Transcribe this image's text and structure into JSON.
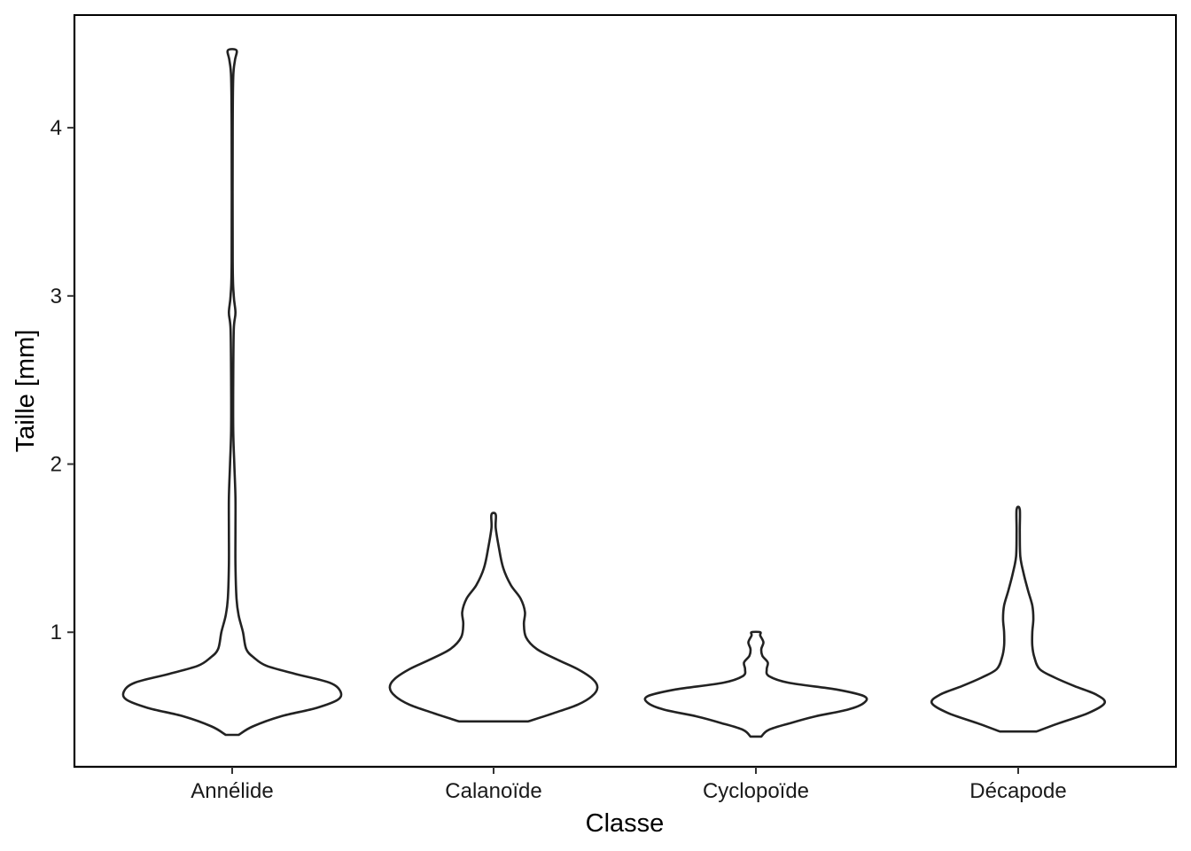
{
  "chart_data": {
    "type": "violin",
    "title": "",
    "xlabel": "Classe",
    "ylabel": "Taille  [mm]",
    "ylim": [
      0.2,
      4.67
    ],
    "yticks": [
      1,
      2,
      3,
      4
    ],
    "grid": false,
    "legend": "none",
    "categories": [
      "Annélide",
      "Calanoïde",
      "Cyclopoïde",
      "Décapode"
    ],
    "series": [
      {
        "category": "Annélide",
        "min": 0.39,
        "max": 4.46,
        "density": [
          [
            0.39,
            0.06
          ],
          [
            0.44,
            0.19
          ],
          [
            0.5,
            0.45
          ],
          [
            0.55,
            0.78
          ],
          [
            0.6,
            0.98
          ],
          [
            0.65,
            1.0
          ],
          [
            0.7,
            0.9
          ],
          [
            0.75,
            0.6
          ],
          [
            0.8,
            0.32
          ],
          [
            0.85,
            0.2
          ],
          [
            0.9,
            0.13
          ],
          [
            1.0,
            0.1
          ],
          [
            1.1,
            0.06
          ],
          [
            1.2,
            0.04
          ],
          [
            1.4,
            0.03
          ],
          [
            1.6,
            0.03
          ],
          [
            1.8,
            0.03
          ],
          [
            2.0,
            0.02
          ],
          [
            2.2,
            0.01
          ],
          [
            2.5,
            0.01
          ],
          [
            2.8,
            0.015
          ],
          [
            2.9,
            0.03
          ],
          [
            3.0,
            0.015
          ],
          [
            3.2,
            0.005
          ],
          [
            4.0,
            0.005
          ],
          [
            4.3,
            0.01
          ],
          [
            4.4,
            0.025
          ],
          [
            4.46,
            0.04
          ]
        ]
      },
      {
        "category": "Calanoïde",
        "min": 0.47,
        "max": 1.7,
        "density": [
          [
            0.47,
            0.32
          ],
          [
            0.52,
            0.56
          ],
          [
            0.57,
            0.78
          ],
          [
            0.62,
            0.91
          ],
          [
            0.67,
            0.96
          ],
          [
            0.72,
            0.92
          ],
          [
            0.78,
            0.78
          ],
          [
            0.84,
            0.58
          ],
          [
            0.9,
            0.4
          ],
          [
            0.97,
            0.3
          ],
          [
            1.05,
            0.28
          ],
          [
            1.12,
            0.29
          ],
          [
            1.2,
            0.25
          ],
          [
            1.28,
            0.16
          ],
          [
            1.38,
            0.09
          ],
          [
            1.5,
            0.05
          ],
          [
            1.62,
            0.02
          ],
          [
            1.7,
            0.02
          ]
        ]
      },
      {
        "category": "Cyclopoïde",
        "min": 0.38,
        "max": 1.0,
        "density": [
          [
            0.38,
            0.05
          ],
          [
            0.42,
            0.12
          ],
          [
            0.46,
            0.32
          ],
          [
            0.5,
            0.55
          ],
          [
            0.54,
            0.85
          ],
          [
            0.58,
            1.0
          ],
          [
            0.62,
            1.0
          ],
          [
            0.66,
            0.74
          ],
          [
            0.7,
            0.3
          ],
          [
            0.74,
            0.12
          ],
          [
            0.78,
            0.1
          ],
          [
            0.82,
            0.11
          ],
          [
            0.86,
            0.06
          ],
          [
            0.9,
            0.05
          ],
          [
            0.94,
            0.07
          ],
          [
            0.98,
            0.04
          ],
          [
            1.0,
            0.04
          ]
        ]
      },
      {
        "category": "Décapode",
        "min": 0.41,
        "max": 1.73,
        "density": [
          [
            0.41,
            0.17
          ],
          [
            0.46,
            0.38
          ],
          [
            0.52,
            0.65
          ],
          [
            0.58,
            0.8
          ],
          [
            0.63,
            0.72
          ],
          [
            0.68,
            0.52
          ],
          [
            0.73,
            0.34
          ],
          [
            0.78,
            0.2
          ],
          [
            0.85,
            0.15
          ],
          [
            0.92,
            0.13
          ],
          [
            1.0,
            0.13
          ],
          [
            1.08,
            0.14
          ],
          [
            1.16,
            0.13
          ],
          [
            1.25,
            0.09
          ],
          [
            1.35,
            0.05
          ],
          [
            1.45,
            0.02
          ],
          [
            1.6,
            0.015
          ],
          [
            1.73,
            0.015
          ]
        ]
      }
    ]
  }
}
